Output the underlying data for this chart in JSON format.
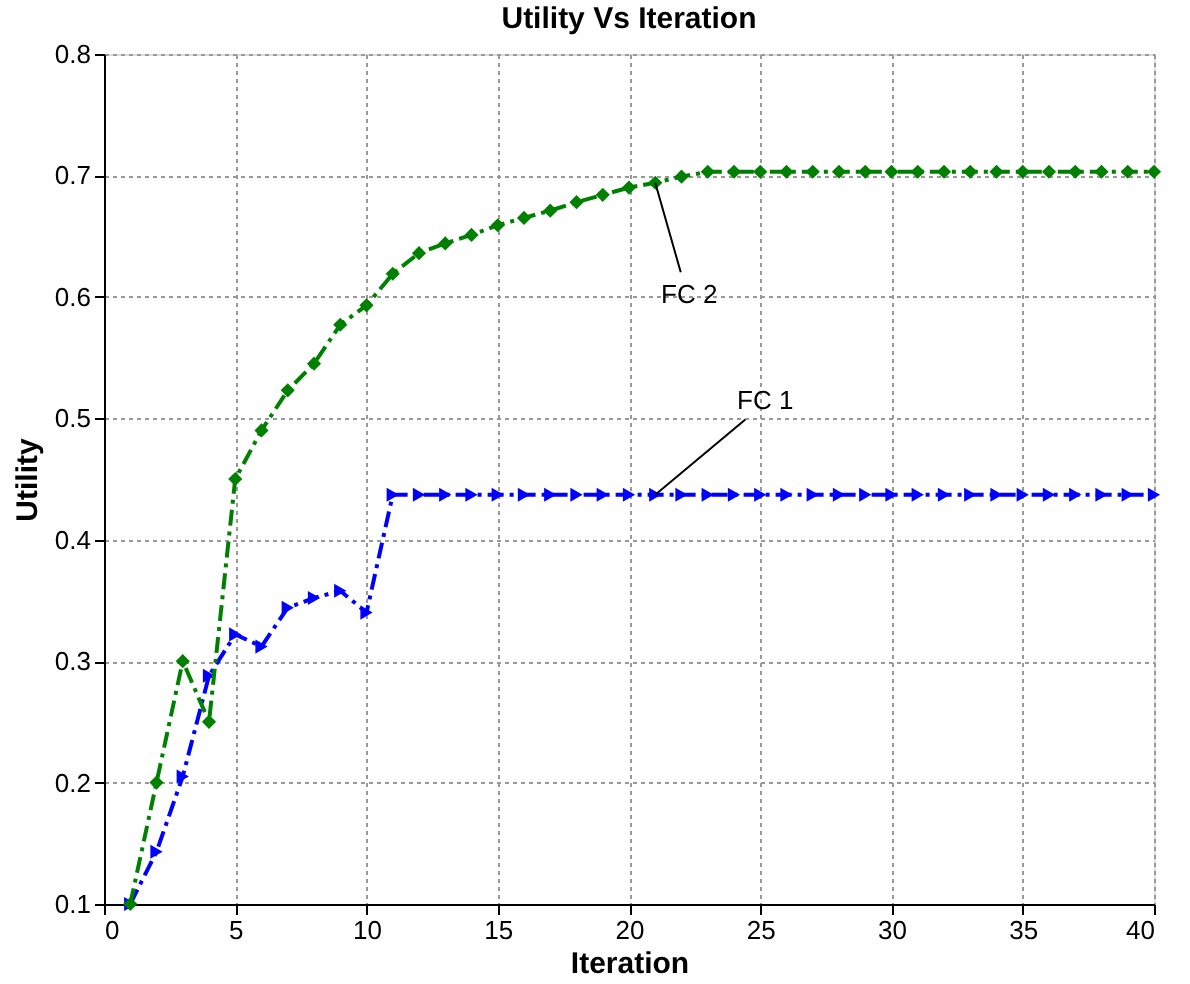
{
  "chart_data": {
    "type": "line",
    "title": "Utility Vs Iteration",
    "xlabel": "Iteration",
    "ylabel": "Utility",
    "xlim": [
      0,
      40
    ],
    "xticks": [
      0,
      5,
      10,
      15,
      20,
      25,
      30,
      35,
      40
    ],
    "ylim": [
      0.1,
      0.8
    ],
    "yticks": [
      0.1,
      0.2,
      0.3,
      0.4,
      0.5,
      0.6,
      0.7,
      0.8
    ],
    "grid": true,
    "line_style": "dashed",
    "x": [
      1,
      2,
      3,
      4,
      5,
      6,
      7,
      8,
      9,
      10,
      11,
      12,
      13,
      14,
      15,
      16,
      17,
      18,
      19,
      20,
      21,
      22,
      23,
      24,
      25,
      26,
      27,
      28,
      29,
      30,
      31,
      32,
      33,
      34,
      35,
      36,
      37,
      38,
      39,
      40
    ],
    "series": [
      {
        "color": "#0000ff",
        "marker": "triangle",
        "values": [
          0.1,
          0.143,
          0.205,
          0.288,
          0.322,
          0.312,
          0.344,
          0.352,
          0.358,
          0.34,
          0.437,
          0.437,
          0.437,
          0.437,
          0.437,
          0.437,
          0.437,
          0.437,
          0.437,
          0.437,
          0.437,
          0.437,
          0.437,
          0.437,
          0.437,
          0.437,
          0.437,
          0.437,
          0.437,
          0.437,
          0.437,
          0.437,
          0.437,
          0.437,
          0.437,
          0.437,
          0.437,
          0.437,
          0.437,
          0.437
        ]
      },
      {
        "color": "#008000",
        "marker": "diamond",
        "values": [
          0.1,
          0.2,
          0.3,
          0.25,
          0.45,
          0.49,
          0.523,
          0.545,
          0.577,
          0.593,
          0.619,
          0.636,
          0.644,
          0.651,
          0.659,
          0.665,
          0.671,
          0.678,
          0.684,
          0.69,
          0.694,
          0.699,
          0.703,
          0.703,
          0.703,
          0.703,
          0.703,
          0.703,
          0.703,
          0.703,
          0.703,
          0.703,
          0.703,
          0.703,
          0.703,
          0.703,
          0.703,
          0.703,
          0.703,
          0.703
        ]
      }
    ],
    "annotations": [
      {
        "text": "FC 1",
        "x": 21,
        "y": 0.437
      },
      {
        "text": "FC 2",
        "x": 21,
        "y": 0.694
      }
    ]
  }
}
